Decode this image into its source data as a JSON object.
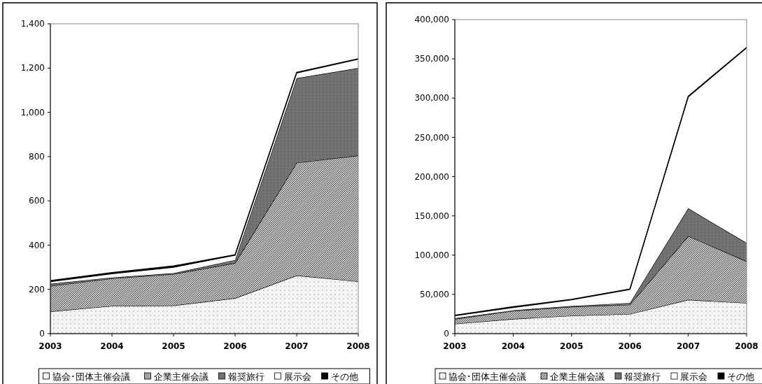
{
  "chart_data": [
    {
      "type": "area",
      "stacked": true,
      "categories": [
        "2003",
        "2004",
        "2005",
        "2006",
        "2007",
        "2008"
      ],
      "ylim": [
        0,
        1400
      ],
      "yticks": [
        {
          "value": 0,
          "label": "0"
        },
        {
          "value": 200,
          "label": "200"
        },
        {
          "value": 400,
          "label": "400"
        },
        {
          "value": 600,
          "label": "600"
        },
        {
          "value": 800,
          "label": "800"
        },
        {
          "value": 1000,
          "label": "1,000"
        },
        {
          "value": 1200,
          "label": "1,200"
        },
        {
          "value": 1400,
          "label": "1,400"
        }
      ],
      "legend": "bottom",
      "grid": false,
      "series": [
        {
          "name": "協会･団体主催会議",
          "color": "#f4f4f4",
          "values": [
            100,
            125,
            127,
            160,
            263,
            236
          ]
        },
        {
          "name": "企業主催会議",
          "color": "#c8c8c8",
          "values": [
            115,
            124,
            142,
            159,
            509,
            569
          ]
        },
        {
          "name": "報奨旅行",
          "color": "#808080",
          "values": [
            10,
            5,
            4,
            14,
            382,
            395
          ]
        },
        {
          "name": "展示会",
          "color": "#ffffff",
          "values": [
            10,
            17,
            27,
            21,
            24,
            40
          ]
        },
        {
          "name": "その他",
          "color": "#000000",
          "values": [
            5,
            5,
            6,
            3,
            3,
            2
          ]
        }
      ]
    },
    {
      "type": "area",
      "stacked": true,
      "categories": [
        "2003",
        "2004",
        "2005",
        "2006",
        "2007",
        "2008"
      ],
      "ylim": [
        0,
        400000
      ],
      "yticks": [
        {
          "value": 0,
          "label": "0"
        },
        {
          "value": 50000,
          "label": "50,000"
        },
        {
          "value": 100000,
          "label": "100,000"
        },
        {
          "value": 150000,
          "label": "150,000"
        },
        {
          "value": 200000,
          "label": "200,000"
        },
        {
          "value": 250000,
          "label": "250,000"
        },
        {
          "value": 300000,
          "label": "300,000"
        },
        {
          "value": 350000,
          "label": "350,000"
        },
        {
          "value": 400000,
          "label": "400,000"
        }
      ],
      "legend": "bottom",
      "grid": false,
      "series": [
        {
          "name": "協会･団体主催会議",
          "color": "#f4f4f4",
          "values": [
            12500,
            18700,
            22800,
            25000,
            43100,
            39000
          ]
        },
        {
          "name": "企業主催会議",
          "color": "#c8c8c8",
          "values": [
            6200,
            10300,
            11500,
            11800,
            81200,
            53100
          ]
        },
        {
          "name": "報奨旅行",
          "color": "#808080",
          "values": [
            1000,
            700,
            1000,
            2200,
            35300,
            23400
          ]
        },
        {
          "name": "展示会",
          "color": "#ffffff",
          "values": [
            3100,
            3700,
            7800,
            17200,
            142000,
            248500
          ]
        },
        {
          "name": "その他",
          "color": "#000000",
          "values": [
            600,
            900,
            600,
            600,
            900,
            700
          ]
        }
      ]
    }
  ]
}
